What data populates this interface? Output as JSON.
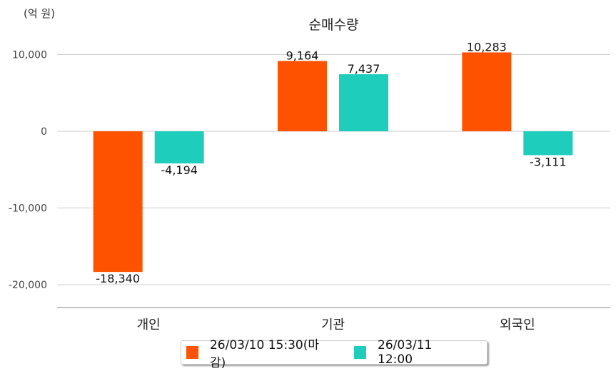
{
  "chart_data": {
    "type": "bar",
    "title": "순매수량",
    "ylabel": "(억 원)",
    "xlabel": "",
    "categories": [
      "개인",
      "기관",
      "외국인"
    ],
    "series": [
      {
        "name": "26/03/10 15:30(마감)",
        "color": "#FF5200",
        "values": [
          -18340,
          9164,
          10283
        ],
        "labels": [
          "-18,340",
          "9,164",
          "10,283"
        ]
      },
      {
        "name": "26/03/11 12:00",
        "color": "#1ECDBC",
        "values": [
          -4194,
          7437,
          -3111
        ],
        "labels": [
          "-4,194",
          "7,437",
          "-3,111"
        ]
      }
    ],
    "yticks": [
      10000,
      0,
      -10000,
      -20000
    ],
    "ytick_labels": [
      "10,000",
      "0",
      "-10,000",
      "-20,000"
    ],
    "ylim": [
      -23000,
      15000
    ],
    "grid": true,
    "legend_position": "bottom"
  }
}
